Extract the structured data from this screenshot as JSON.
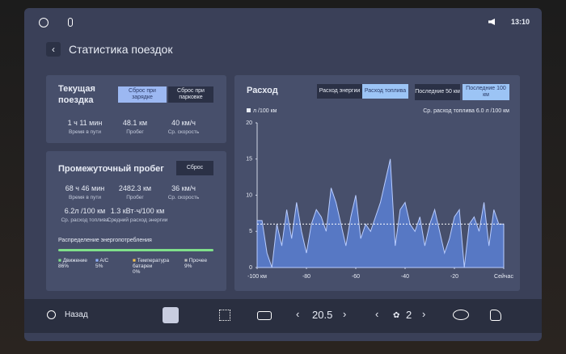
{
  "status_bar": {
    "time": "13:10"
  },
  "header": {
    "title": "Статистика поездок"
  },
  "current_trip": {
    "title": "Текущая поездка",
    "buttons": [
      "Сброс при зарядке",
      "Сброс при парковке"
    ],
    "stats": [
      {
        "value": "1 ч 11 мин",
        "label": "Время в пути"
      },
      {
        "value": "48.1 км",
        "label": "Пробег"
      },
      {
        "value": "40 км/ч",
        "label": "Ср. скорость"
      }
    ]
  },
  "interim": {
    "title": "Промежуточный пробег",
    "button": "Сброс",
    "stats": [
      {
        "value": "68 ч 46 мин",
        "label": "Время в пути"
      },
      {
        "value": "2482.3 км",
        "label": "Пробег"
      },
      {
        "value": "36 км/ч",
        "label": "Ср. скорость"
      },
      {
        "value": "6.2л /100 км",
        "label": "Ср. расход топлива"
      },
      {
        "value": "1.3 кВт·ч/100 км",
        "label": "Средний расход энергии"
      }
    ],
    "distribution": {
      "title": "Распределение энергопотребления",
      "items": [
        {
          "name": "Движение",
          "value": "86%"
        },
        {
          "name": "A/C",
          "value": "5%"
        },
        {
          "name": "Температура батареи",
          "value": "0%"
        },
        {
          "name": "Прочее",
          "value": "9%"
        }
      ]
    }
  },
  "chart_panel": {
    "title": "Расход",
    "tabs": [
      "Расход энергии",
      "Расход топлива"
    ],
    "ranges": [
      "Последние 50 км",
      "Последние 100 км"
    ]
  },
  "chart_data": {
    "type": "area",
    "x": [
      -100,
      -98,
      -96,
      -94,
      -92,
      -90,
      -88,
      -86,
      -84,
      -82,
      -80,
      -78,
      -76,
      -74,
      -72,
      -70,
      -68,
      -66,
      -64,
      -62,
      -60,
      -58,
      -56,
      -54,
      -52,
      -50,
      -48,
      -46,
      -44,
      -42,
      -40,
      -38,
      -36,
      -34,
      -32,
      -30,
      -28,
      -26,
      -24,
      -22,
      -20,
      -18,
      -16,
      -14,
      -12,
      -10,
      -8,
      -6,
      -4,
      -2,
      0
    ],
    "series": [
      {
        "name": "л /100 км",
        "color": "#5b7fd4",
        "values": [
          6.5,
          6.5,
          2,
          0,
          6,
          3,
          8,
          4,
          9,
          5,
          2,
          6,
          8,
          7,
          5,
          11,
          9,
          6,
          3,
          7,
          10,
          4,
          6,
          5,
          7,
          9,
          12,
          15,
          3,
          8,
          9,
          6,
          5,
          7,
          3,
          6,
          8,
          5,
          2,
          4,
          7,
          8,
          0,
          6,
          7,
          5,
          9,
          3,
          8,
          6,
          6
        ]
      }
    ],
    "average": {
      "value": 6.0,
      "label": "Ср. расход топлива 6.0 л /100 км"
    },
    "xlim": [
      -100,
      0
    ],
    "ylim": [
      0,
      20
    ],
    "yticks": [
      0,
      5,
      10,
      15,
      20
    ],
    "xticks": [
      {
        "value": -100,
        "label": "-100 км"
      },
      -80,
      -60,
      -40,
      -20,
      {
        "value": 0,
        "label": "Сейчас"
      }
    ],
    "grid": false
  },
  "bottom_bar": {
    "back": "Назад",
    "temperature": "20.5",
    "fan": "2"
  }
}
